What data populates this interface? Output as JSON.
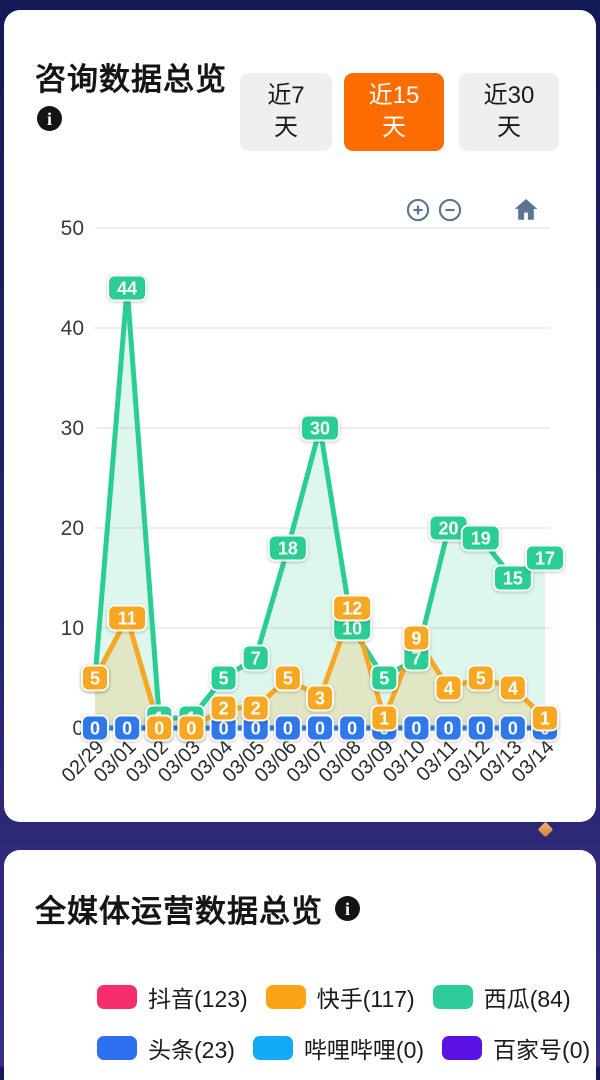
{
  "consult_card": {
    "title": "咨询数据总览",
    "info_icon": "i",
    "tabs": [
      {
        "key": "7d",
        "line1": "近7",
        "line2": "天",
        "active": false
      },
      {
        "key": "15d",
        "line1": "近15",
        "line2": "天",
        "active": true
      },
      {
        "key": "30d",
        "line1": "近30",
        "line2": "天",
        "active": false
      }
    ],
    "active_tab_color": "#fc6c00",
    "controls": {
      "zoom_in": "plus",
      "zoom_out": "minus",
      "reset": "home",
      "icon_color": "#5d7590"
    }
  },
  "chart_data": {
    "type": "line",
    "x": [
      "02/29",
      "03/01",
      "03/02",
      "03/03",
      "03/04",
      "03/05",
      "03/06",
      "03/07",
      "03/08",
      "03/09",
      "03/10",
      "03/11",
      "03/12",
      "03/13",
      "03/14"
    ],
    "series": [
      {
        "name": "西瓜",
        "color": "#2bce92",
        "fill": "rgba(43,206,146,0.16)",
        "labels": true,
        "dashed": false,
        "values": [
          5,
          44,
          1,
          1,
          5,
          7,
          18,
          30,
          10,
          5,
          7,
          20,
          19,
          15,
          17
        ]
      },
      {
        "name": "快手",
        "color": "#f7a823",
        "fill": "rgba(247,168,35,0.20)",
        "labels": true,
        "dashed": false,
        "values": [
          5,
          11,
          0,
          0,
          2,
          2,
          5,
          3,
          12,
          1,
          9,
          4,
          5,
          4,
          1
        ]
      },
      {
        "name": "头条",
        "color": "#2e78e8",
        "fill": null,
        "labels": true,
        "dashed": false,
        "values": [
          0,
          0,
          0,
          0,
          0,
          0,
          0,
          0,
          0,
          0,
          0,
          0,
          0,
          0,
          0
        ]
      },
      {
        "name": "哔哩哔哩",
        "color": "#38b6f5",
        "fill": null,
        "labels": false,
        "dashed": true,
        "values": [
          0,
          0,
          0,
          0,
          0,
          0,
          0,
          0,
          0,
          0,
          0,
          0,
          0,
          0,
          0
        ]
      }
    ],
    "label_order": [
      "头条",
      "西瓜",
      "快手"
    ],
    "ylim": [
      0,
      50
    ],
    "yticks": [
      0,
      10,
      20,
      30,
      40,
      50
    ],
    "grid": true,
    "legend_position": "none",
    "title": "",
    "xlabel": "",
    "ylabel": ""
  },
  "media_card": {
    "title": "全媒体运营数据总览",
    "info_icon": "i",
    "legend_rows": [
      [
        {
          "label": "抖音(123)",
          "color": "#f72d6d"
        },
        {
          "label": "快手(117)",
          "color": "#fba416"
        },
        {
          "label": "西瓜(84)",
          "color": "#2ecc9a"
        }
      ],
      [
        {
          "label": "头条(23)",
          "color": "#2e6ff2"
        },
        {
          "label": "哔哩哔哩(0)",
          "color": "#12aaf6"
        },
        {
          "label": "百家号(0)",
          "color": "#5b10e4"
        }
      ]
    ]
  }
}
